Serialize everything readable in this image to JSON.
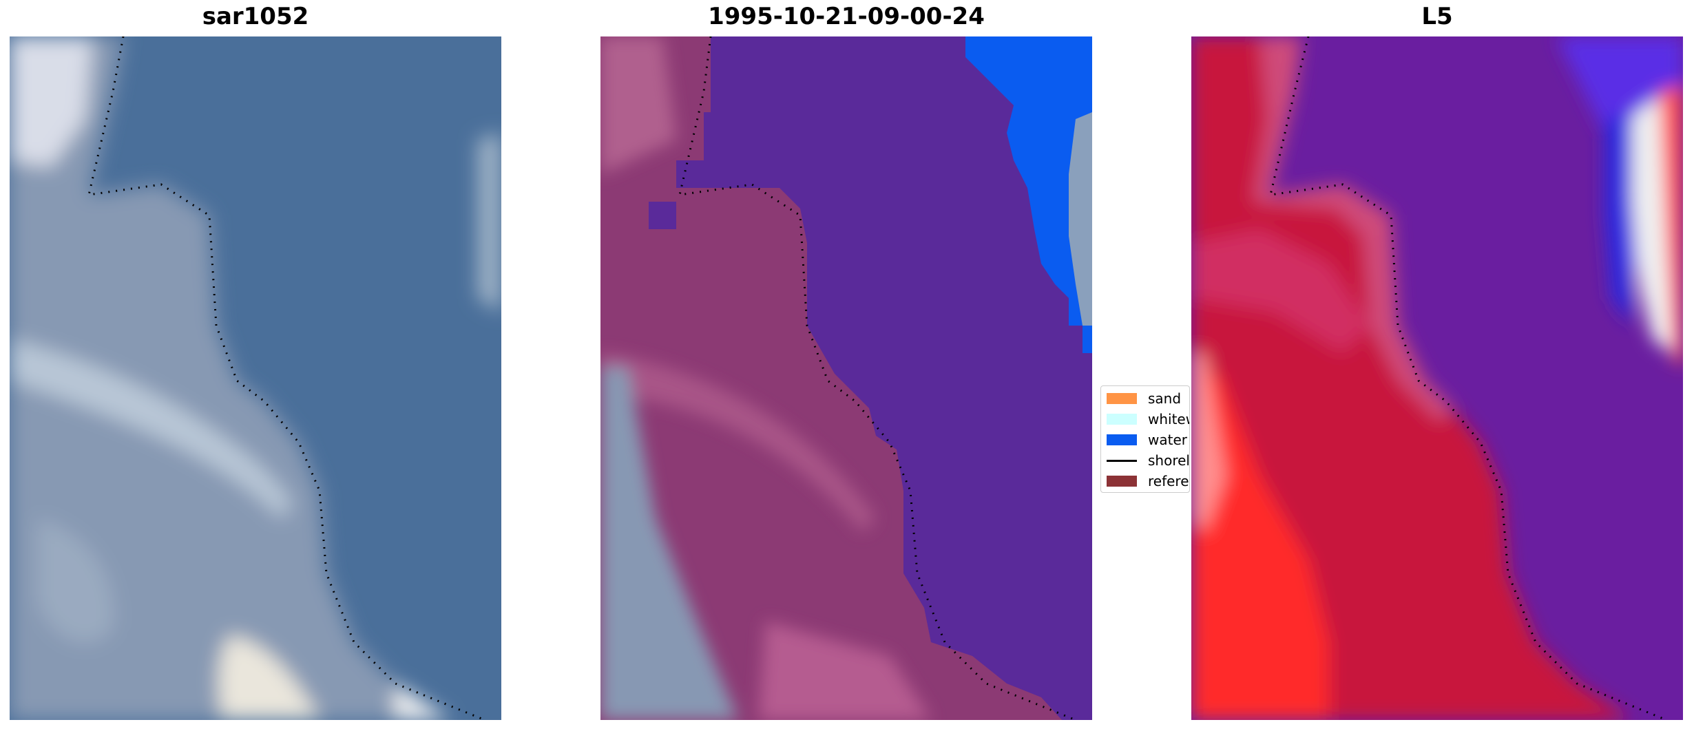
{
  "panels": [
    {
      "title": "sar1052"
    },
    {
      "title": "1995-10-21-09-00-24"
    },
    {
      "title": "L5"
    }
  ],
  "legend": {
    "items": [
      {
        "label": "sand",
        "color": "#ff9445"
      },
      {
        "label": "whitewater",
        "color": "#ccffff"
      },
      {
        "label": "water",
        "color": "#0a5cf0"
      },
      {
        "label": "shoreline",
        "color": "#000000"
      },
      {
        "label": "reference",
        "color": "#8c3236"
      }
    ]
  },
  "colors": {
    "water_class": "#5a2a9a",
    "land_class": "#8c3a74",
    "rgb_water": "#4a6f9a",
    "rgb_land": "#8798b2",
    "index_land": "#c8143c",
    "index_water": "#6a1ea0"
  }
}
